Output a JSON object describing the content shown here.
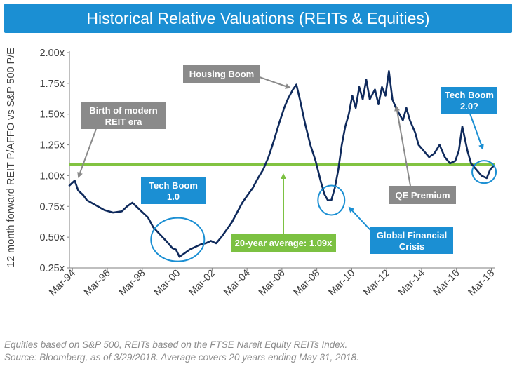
{
  "title": "Historical Relative Valuations (REITs & Equities)",
  "footnotes": [
    "Equities based on S&P 500, REITs based on the FTSE Nareit Equity REITs Index.",
    "Source: Bloomberg, as of 3/29/2018. Average covers 20 years ending May 31, 2018."
  ],
  "colors": {
    "title_bg": "#1b8fd3",
    "series": "#0f2a5c",
    "average": "#82c341",
    "circle": "#1b8fd3",
    "callout_gray": "#8a8a8a",
    "callout_blue": "#1b8fd3",
    "callout_green": "#7cc142"
  },
  "chart_data": {
    "type": "line",
    "ylabel": "12 month forward REIT P/AFFO vs S&P 500 P/E",
    "xlabel": "",
    "ylim": [
      0.25,
      2.0
    ],
    "xlim": [
      1994.0,
      2018.35
    ],
    "y_ticks": [
      0.25,
      0.5,
      0.75,
      1.0,
      1.25,
      1.5,
      1.75,
      2.0
    ],
    "y_tick_labels": [
      "0.25x",
      "0.50x",
      "0.75x",
      "1.00x",
      "1.25x",
      "1.50x",
      "1.75x",
      "2.00x"
    ],
    "x_ticks": [
      1994.17,
      1996.17,
      1998.17,
      2000.17,
      2002.17,
      2004.17,
      2006.17,
      2008.17,
      2010.17,
      2012.17,
      2014.17,
      2016.17,
      2018.17
    ],
    "x_tick_labels": [
      "Mar-94",
      "Mar-96",
      "Mar-98",
      "Mar-00",
      "Mar-02",
      "Mar-04",
      "Mar-06",
      "Mar-08",
      "Mar-10",
      "Mar-12",
      "Mar-14",
      "Mar-16",
      "Mar-18"
    ],
    "average": {
      "value": 1.09,
      "label": "20-year average: 1.09x"
    },
    "series": [
      {
        "name": "REIT P/AFFO vs S&P 500 P/E",
        "x": [
          1994.0,
          1994.3,
          1994.5,
          1994.8,
          1995.0,
          1995.5,
          1996.0,
          1996.5,
          1997.0,
          1997.3,
          1997.6,
          1997.9,
          1998.2,
          1998.5,
          1998.8,
          1999.2,
          1999.6,
          1999.9,
          2000.1,
          2000.3,
          2000.6,
          2000.9,
          2001.2,
          2001.5,
          2001.8,
          2002.1,
          2002.4,
          2002.7,
          2003.0,
          2003.3,
          2003.6,
          2003.9,
          2004.2,
          2004.5,
          2004.8,
          2005.1,
          2005.4,
          2005.7,
          2006.0,
          2006.3,
          2006.5,
          2006.8,
          2007.0,
          2007.2,
          2007.5,
          2007.8,
          2008.1,
          2008.4,
          2008.6,
          2008.8,
          2009.0,
          2009.2,
          2009.4,
          2009.6,
          2009.8,
          2010.0,
          2010.2,
          2010.4,
          2010.6,
          2010.8,
          2011.0,
          2011.2,
          2011.5,
          2011.7,
          2011.9,
          2012.1,
          2012.3,
          2012.5,
          2012.7,
          2012.9,
          2013.1,
          2013.3,
          2013.5,
          2013.8,
          2014.0,
          2014.3,
          2014.6,
          2014.9,
          2015.2,
          2015.5,
          2015.8,
          2016.1,
          2016.3,
          2016.5,
          2016.8,
          2017.0,
          2017.3,
          2017.6,
          2017.9,
          2018.1,
          2018.3
        ],
        "values": [
          0.92,
          0.96,
          0.88,
          0.84,
          0.8,
          0.76,
          0.72,
          0.7,
          0.71,
          0.75,
          0.78,
          0.74,
          0.7,
          0.66,
          0.58,
          0.52,
          0.46,
          0.41,
          0.4,
          0.34,
          0.37,
          0.4,
          0.42,
          0.44,
          0.45,
          0.47,
          0.45,
          0.5,
          0.56,
          0.62,
          0.7,
          0.78,
          0.84,
          0.9,
          0.98,
          1.05,
          1.15,
          1.28,
          1.42,
          1.55,
          1.62,
          1.7,
          1.74,
          1.62,
          1.42,
          1.25,
          1.12,
          0.95,
          0.85,
          0.8,
          0.8,
          0.9,
          1.05,
          1.25,
          1.4,
          1.5,
          1.65,
          1.55,
          1.72,
          1.62,
          1.78,
          1.62,
          1.7,
          1.58,
          1.72,
          1.65,
          1.85,
          1.62,
          1.55,
          1.5,
          1.45,
          1.55,
          1.45,
          1.35,
          1.25,
          1.2,
          1.15,
          1.18,
          1.25,
          1.15,
          1.1,
          1.12,
          1.2,
          1.4,
          1.2,
          1.1,
          1.05,
          1.0,
          0.98,
          1.05,
          1.08
        ]
      }
    ],
    "annotations": [
      {
        "id": "birth",
        "lines": [
          "Birth of modern",
          "REIT era"
        ],
        "style": "gray"
      },
      {
        "id": "housing",
        "lines": [
          "Housing Boom"
        ],
        "style": "gray"
      },
      {
        "id": "qe",
        "lines": [
          "QE Premium"
        ],
        "style": "gray"
      },
      {
        "id": "tech1",
        "lines": [
          "Tech Boom",
          "1.0"
        ],
        "style": "blue"
      },
      {
        "id": "gfc",
        "lines": [
          "Global Financial",
          "Crisis"
        ],
        "style": "blue"
      },
      {
        "id": "tech2",
        "lines": [
          "Tech Boom",
          "2.0?"
        ],
        "style": "blue"
      },
      {
        "id": "avg",
        "lines": [
          "20-year average: 1.09x"
        ],
        "style": "green"
      }
    ]
  }
}
